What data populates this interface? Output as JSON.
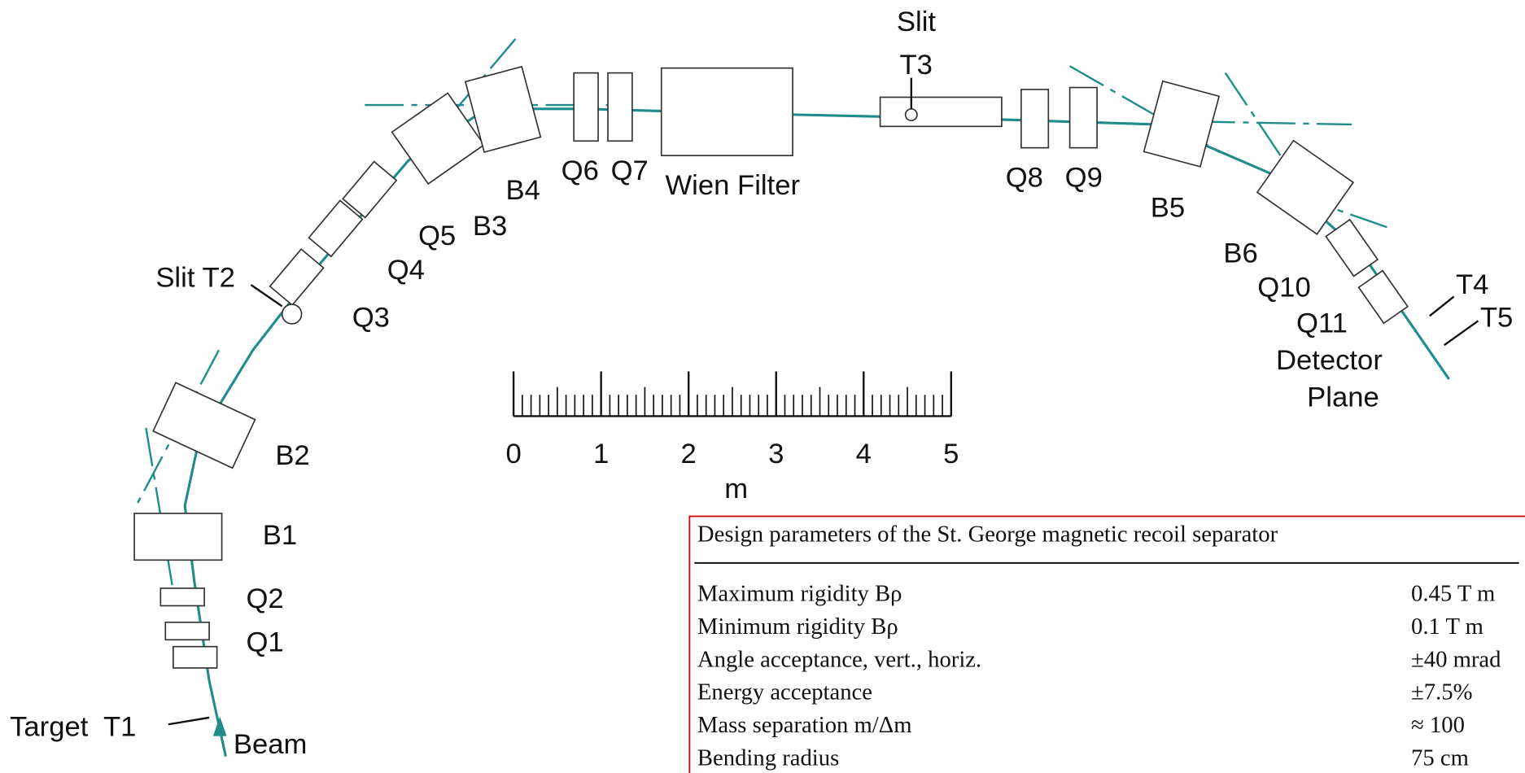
{
  "diagram": {
    "labels": [
      "Slit",
      "T3",
      "Q6",
      "Q7",
      "Wien Filter",
      "Q8",
      "Q9",
      "B4",
      "B3",
      "Q5",
      "Q4",
      "Slit T2",
      "Q3",
      "B5",
      "B6",
      "Q10",
      "Q11",
      "T4",
      "T5",
      "Detector",
      "Plane",
      "B2",
      "B1",
      "Q2",
      "Q1",
      "Target  T1",
      "Beam"
    ]
  },
  "scale": {
    "ticks": [
      0,
      1,
      2,
      3,
      4,
      5
    ],
    "unit": "m"
  },
  "table": {
    "caption": "Design parameters of the St. George magnetic recoil separator",
    "rows": [
      [
        "Maximum rigidity Bρ",
        "0.45 T m"
      ],
      [
        "Minimum rigidity Bρ",
        "0.1 T m"
      ],
      [
        "Angle acceptance, vert., horiz.",
        "±40 mrad"
      ],
      [
        "Energy acceptance",
        "±7.5%"
      ],
      [
        "Mass separation m/Δm",
        "≈ 100"
      ],
      [
        "Bending radius",
        "75 cm"
      ]
    ]
  }
}
